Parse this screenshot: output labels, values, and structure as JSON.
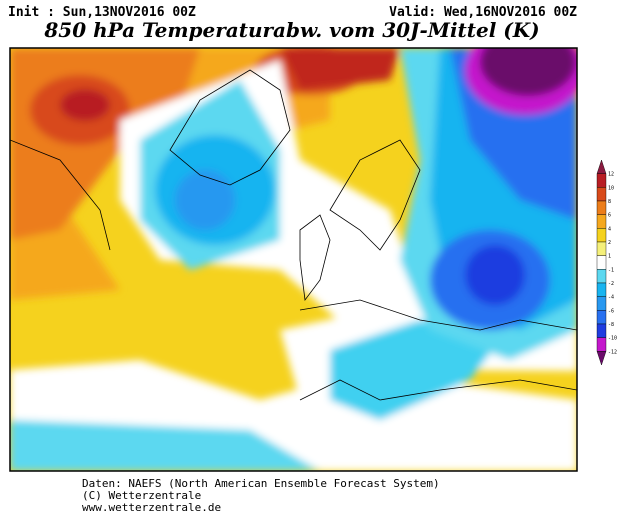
{
  "header": {
    "init": "Init : Sun,13NOV2016 00Z",
    "valid": "Valid: Wed,16NOV2016 00Z",
    "title": "850 hPa Temperaturabw. vom 30J-Mittel (K)"
  },
  "colorbar": {
    "ticks": [
      12,
      10,
      8,
      6,
      4,
      2,
      1,
      -1,
      -2,
      -4,
      -6,
      -8,
      -10,
      -12
    ],
    "colors": [
      "#8a1a40",
      "#b81e24",
      "#d84a1a",
      "#ec7d1a",
      "#f5a81e",
      "#f5d21e",
      "#f5f07a",
      "#ffffff",
      "#5cd8f0",
      "#18b4f0",
      "#2898f0",
      "#2870f0",
      "#1f3ce0",
      "#c418cc",
      "#6a0a6a"
    ]
  },
  "footer": [
    "Daten: NAEFS (North American Ensemble Forecast System)",
    "(C) Wetterzentrale",
    "www.wetterzentrale.de"
  ]
}
